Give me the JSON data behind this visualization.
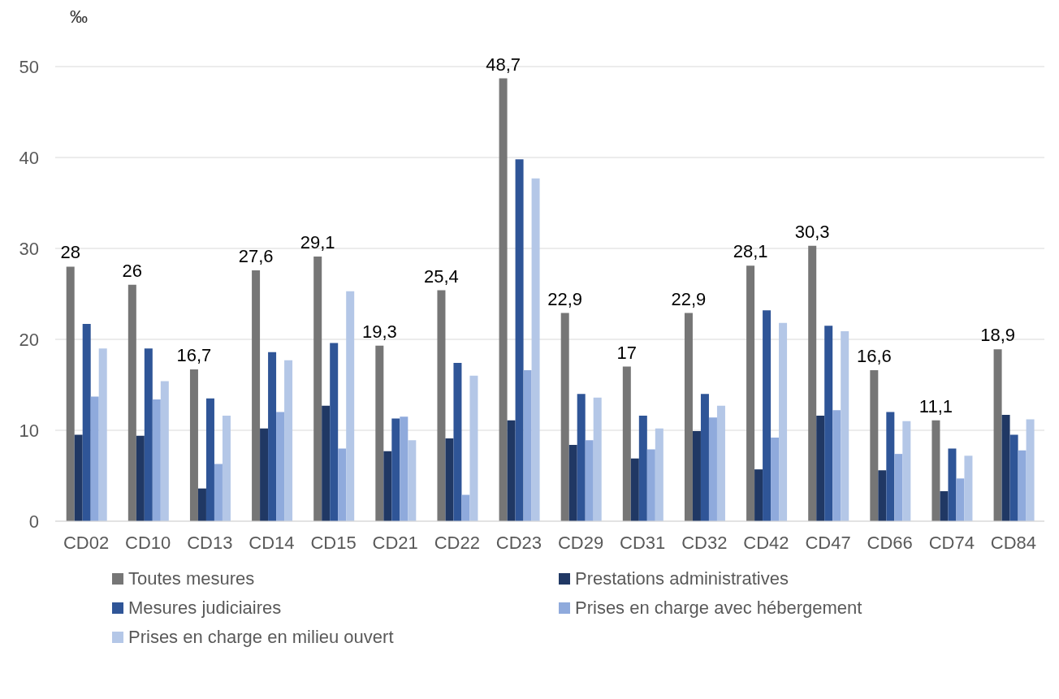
{
  "chart_data": {
    "type": "bar",
    "ylabel": "‰",
    "categories": [
      "CD02",
      "CD10",
      "CD13",
      "CD14",
      "CD15",
      "CD21",
      "CD22",
      "CD23",
      "CD29",
      "CD31",
      "CD32",
      "CD42",
      "CD47",
      "CD66",
      "CD74",
      "CD84"
    ],
    "series": [
      {
        "name": "Toutes mesures",
        "color": "#767676",
        "values": [
          28,
          26,
          16.7,
          27.6,
          29.1,
          19.3,
          25.4,
          48.7,
          22.9,
          17,
          22.9,
          28.1,
          30.3,
          16.6,
          11.1,
          18.9
        ],
        "value_labels": [
          "28",
          "26",
          "16,7",
          "27,6",
          "29,1",
          "19,3",
          "25,4",
          "48,7",
          "22,9",
          "17",
          "22,9",
          "28,1",
          "30,3",
          "16,6",
          "11,1",
          "18,9"
        ]
      },
      {
        "name": "Prestations administratives",
        "color": "#203864",
        "values": [
          9.5,
          9.4,
          3.6,
          10.2,
          12.7,
          7.7,
          9.1,
          11.1,
          8.4,
          6.9,
          9.9,
          5.7,
          11.6,
          5.6,
          3.3,
          11.7
        ]
      },
      {
        "name": "Mesures judiciaires",
        "color": "#2f5597",
        "values": [
          21.7,
          19,
          13.5,
          18.6,
          19.6,
          11.3,
          17.4,
          39.8,
          14,
          11.6,
          14,
          23.2,
          21.5,
          12,
          8,
          9.5
        ]
      },
      {
        "name": "Prises en charge avec hébergement",
        "color": "#8faadc",
        "values": [
          13.7,
          13.4,
          6.3,
          12,
          8,
          11.5,
          2.9,
          16.6,
          8.9,
          7.9,
          11.4,
          9.2,
          12.2,
          7.4,
          4.7,
          7.8
        ]
      },
      {
        "name": "Prises en charge en milieu ouvert",
        "color": "#b4c7e7",
        "values": [
          19,
          15.4,
          11.6,
          17.7,
          25.3,
          8.9,
          16,
          37.7,
          13.6,
          10.2,
          12.7,
          21.8,
          20.9,
          11,
          7.2,
          11.2
        ]
      }
    ],
    "ylim": [
      0,
      50
    ],
    "yticks": [
      0,
      10,
      20,
      30,
      40,
      50
    ],
    "grid": "y",
    "legend": "bottom"
  }
}
